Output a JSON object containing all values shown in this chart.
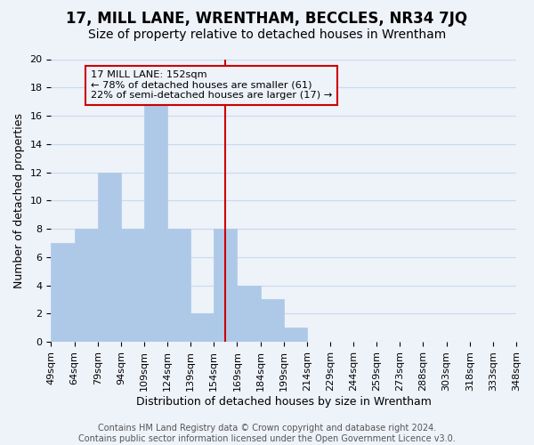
{
  "title": "17, MILL LANE, WRENTHAM, BECCLES, NR34 7JQ",
  "subtitle": "Size of property relative to detached houses in Wrentham",
  "xlabel": "Distribution of detached houses by size in Wrentham",
  "ylabel": "Number of detached properties",
  "bar_values": [
    7,
    8,
    12,
    8,
    17,
    8,
    2,
    8,
    4,
    3,
    1,
    0,
    0,
    0,
    0,
    0,
    0,
    0,
    0,
    0
  ],
  "bar_labels": [
    "49sqm",
    "64sqm",
    "79sqm",
    "94sqm",
    "109sqm",
    "124sqm",
    "139sqm",
    "154sqm",
    "169sqm",
    "184sqm",
    "199sqm",
    "214sqm",
    "229sqm",
    "244sqm",
    "259sqm",
    "273sqm",
    "288sqm",
    "303sqm",
    "318sqm",
    "333sqm"
  ],
  "x_extra_label": "348sqm",
  "bar_color": "#aec9e8",
  "bar_edge_color": "#aec9e8",
  "grid_color": "#c8daf0",
  "bg_color": "#eef2f9",
  "vline_x_index": 7,
  "vline_color": "#cc0000",
  "ylim": [
    0,
    20
  ],
  "yticks": [
    0,
    2,
    4,
    6,
    8,
    10,
    12,
    14,
    16,
    18,
    20
  ],
  "annotation_title": "17 MILL LANE: 152sqm",
  "annotation_line1": "← 78% of detached houses are smaller (61)",
  "annotation_line2": "22% of semi-detached houses are larger (17) →",
  "annotation_box_edge": "#cc0000",
  "footer_line1": "Contains HM Land Registry data © Crown copyright and database right 2024.",
  "footer_line2": "Contains public sector information licensed under the Open Government Licence v3.0.",
  "title_fontsize": 12,
  "subtitle_fontsize": 10,
  "axis_label_fontsize": 9,
  "tick_fontsize": 8,
  "footer_fontsize": 7
}
